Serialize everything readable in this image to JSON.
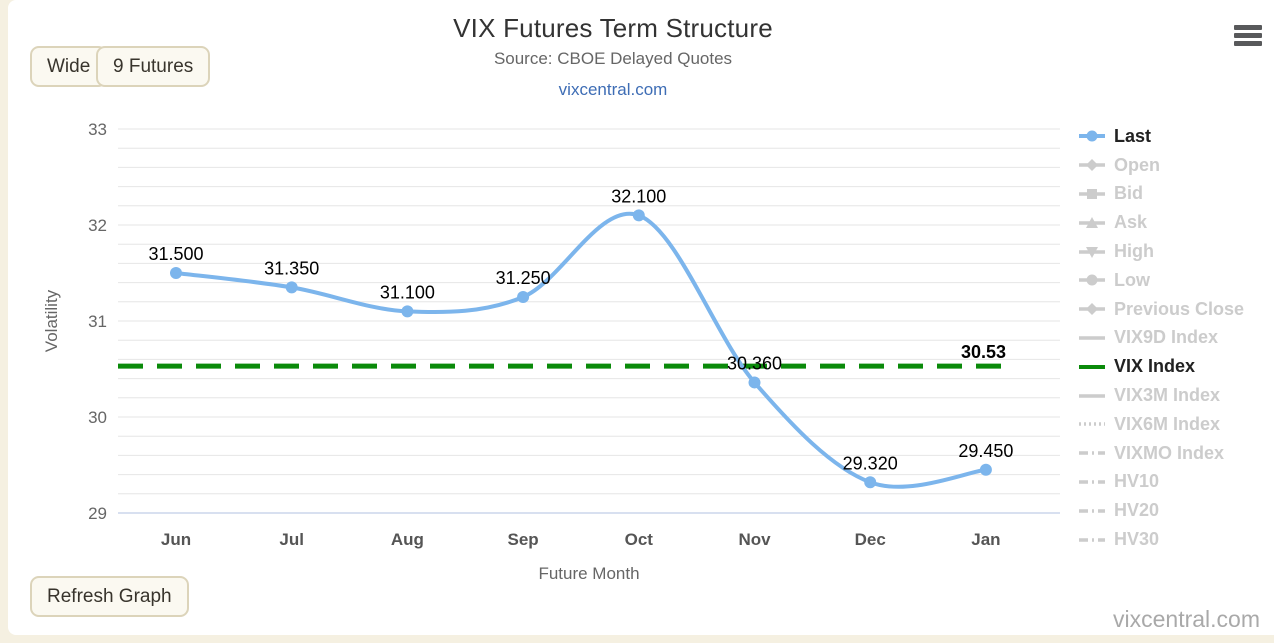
{
  "header": {
    "title": "VIX Futures Term Structure",
    "subtitle": "Source: CBOE Delayed Quotes",
    "link": "vixcentral.com"
  },
  "toolbar": {
    "wide_label": "Wide",
    "futures_label": "9 Futures",
    "refresh_label": "Refresh Graph"
  },
  "watermark": "vixcentral.com",
  "colors": {
    "accent_blue": "#7cb5ec",
    "accent_green": "#0a8a0a",
    "link_blue": "#3e6db5",
    "disabled_gray": "#cccccc",
    "grid_gray": "#e6e6e6",
    "axis_line": "#ccd6eb",
    "tick_text": "#666666",
    "xtick_text": "#555555",
    "page_bg": "#f5f0e1"
  },
  "chart_data": {
    "type": "line",
    "title": "VIX Futures Term Structure",
    "subtitle": "Source: CBOE Delayed Quotes",
    "xlabel": "Future Month",
    "ylabel": "Volatility",
    "categories": [
      "Jun",
      "Jul",
      "Aug",
      "Sep",
      "Oct",
      "Nov",
      "Dec",
      "Jan"
    ],
    "series": [
      {
        "name": "Last",
        "color": "#7cb5ec",
        "values": [
          31.5,
          31.35,
          31.1,
          31.25,
          32.1,
          30.36,
          29.32,
          29.45
        ],
        "point_labels": [
          "31.500",
          "31.350",
          "31.100",
          "31.250",
          "32.100",
          "30.360",
          "29.320",
          "29.450"
        ]
      }
    ],
    "plot_line": {
      "value": 30.53,
      "label": "30.53",
      "color": "#0a8a0a",
      "dash": "dash"
    },
    "ylim": [
      29,
      33
    ],
    "ytick_step": 1,
    "grid_step": 0.2,
    "grid": true,
    "legend_position": "right",
    "yticks": [
      "29",
      "30",
      "31",
      "32",
      "33"
    ]
  },
  "legend": {
    "items": [
      {
        "label": "Last",
        "marker": "circle",
        "dash": "solid",
        "color": "#7cb5ec",
        "active": true
      },
      {
        "label": "Open",
        "marker": "diamond",
        "dash": "solid",
        "color": "#cccccc",
        "active": false
      },
      {
        "label": "Bid",
        "marker": "square",
        "dash": "solid",
        "color": "#cccccc",
        "active": false
      },
      {
        "label": "Ask",
        "marker": "triangle-up",
        "dash": "solid",
        "color": "#cccccc",
        "active": false
      },
      {
        "label": "High",
        "marker": "triangle-down",
        "dash": "solid",
        "color": "#cccccc",
        "active": false
      },
      {
        "label": "Low",
        "marker": "circle",
        "dash": "solid",
        "color": "#cccccc",
        "active": false
      },
      {
        "label": "Previous Close",
        "marker": "diamond",
        "dash": "solid",
        "color": "#cccccc",
        "active": false
      },
      {
        "label": "VIX9D Index",
        "marker": "none",
        "dash": "solid",
        "color": "#cccccc",
        "active": false
      },
      {
        "label": "VIX Index",
        "marker": "none",
        "dash": "solid",
        "color": "#0a8a0a",
        "active": true
      },
      {
        "label": "VIX3M Index",
        "marker": "none",
        "dash": "solid",
        "color": "#cccccc",
        "active": false
      },
      {
        "label": "VIX6M Index",
        "marker": "none",
        "dash": "dot",
        "color": "#cccccc",
        "active": false
      },
      {
        "label": "VIXMO Index",
        "marker": "none",
        "dash": "dashdot",
        "color": "#cccccc",
        "active": false
      },
      {
        "label": "HV10",
        "marker": "none",
        "dash": "dashdot",
        "color": "#cccccc",
        "active": false
      },
      {
        "label": "HV20",
        "marker": "none",
        "dash": "dashdot",
        "color": "#cccccc",
        "active": false
      },
      {
        "label": "HV30",
        "marker": "none",
        "dash": "dashdot",
        "color": "#cccccc",
        "active": false
      }
    ]
  }
}
